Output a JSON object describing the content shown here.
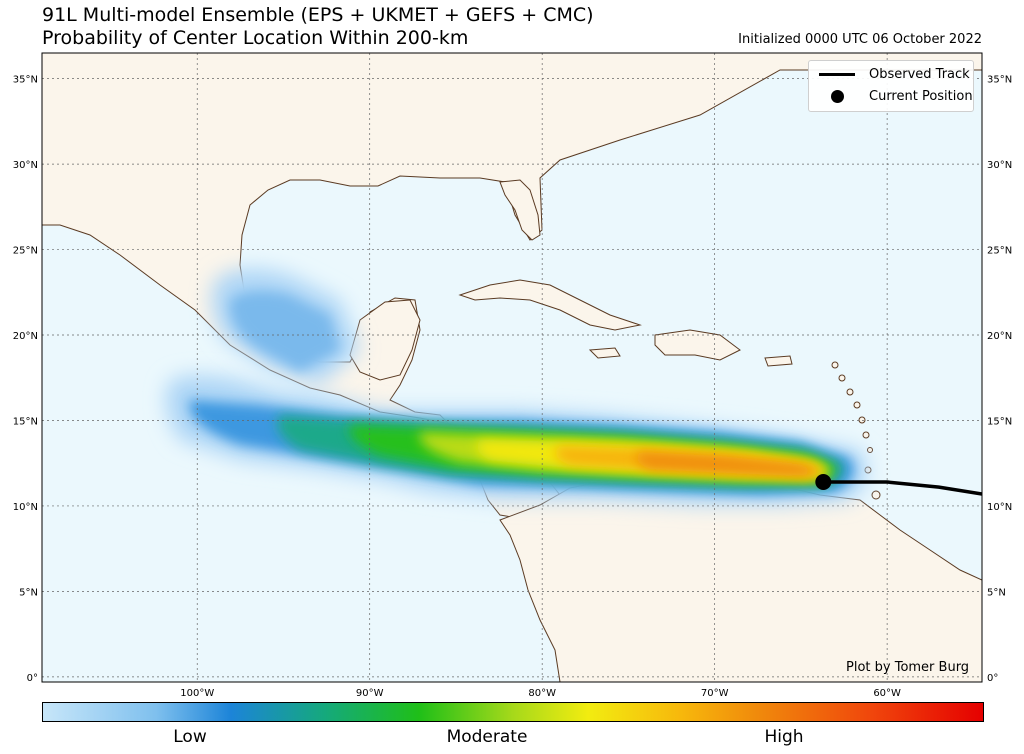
{
  "title": {
    "line1": "91L Multi-model Ensemble (EPS + UKMET + GEFS + CMC)",
    "line2": "Probability of Center Location Within 200-km"
  },
  "initialized": "Initialized 0000 UTC 06 October 2022",
  "credit": "Plot by Tomer Burg",
  "legend": {
    "observed_track": "Observed Track",
    "current_position": "Current Position"
  },
  "colorbar": {
    "labels": [
      "Low",
      "Moderate",
      "High"
    ]
  },
  "axes": {
    "lat_labels": [
      "35°N",
      "30°N",
      "25°N",
      "20°N",
      "15°N",
      "10°N",
      "5°N",
      "0°"
    ],
    "lat_values": [
      35,
      30,
      25,
      20,
      15,
      10,
      5,
      0
    ],
    "lon_labels": [
      "100°W",
      "90°W",
      "80°W",
      "70°W",
      "60°W"
    ],
    "lon_values": [
      -100,
      -90,
      -80,
      -70,
      -60
    ],
    "lon_range": [
      -109,
      -54.5
    ],
    "lat_range": [
      -0.3,
      36.5
    ]
  },
  "colors": {
    "ocean": "#ebf8fd",
    "land": "#fbf5eb",
    "coast": "#5a3a22",
    "track": "#000000"
  },
  "current_position": {
    "lon": -63.7,
    "lat": 11.4
  },
  "observed_track": [
    [
      -54.5,
      10.7
    ],
    [
      -57,
      11.1
    ],
    [
      -60,
      11.4
    ],
    [
      -63.7,
      11.4
    ]
  ]
}
